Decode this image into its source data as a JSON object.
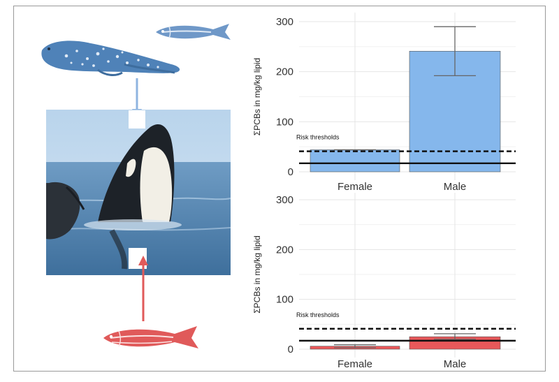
{
  "chart_data": [
    {
      "type": "bar",
      "categories": [
        "Female",
        "Male"
      ],
      "values": [
        44,
        241
      ],
      "error_upper": [
        44,
        290
      ],
      "error_lower": [
        44,
        192
      ],
      "ylim": [
        0,
        300
      ],
      "yticks": [
        0,
        100,
        200,
        300
      ],
      "ylabel": "ΣPCBs in mg/kg lipid",
      "bar_color": "#85b7ec",
      "thresholds": [
        {
          "value": 41,
          "style": "dashed"
        },
        {
          "value": 17,
          "style": "solid"
        }
      ],
      "threshold_label": "Risk thresholds",
      "grid": true
    },
    {
      "type": "bar",
      "categories": [
        "Female",
        "Male"
      ],
      "values": [
        6,
        25
      ],
      "error_upper": [
        9,
        31
      ],
      "error_lower": [
        3,
        20
      ],
      "ylim": [
        0,
        300
      ],
      "yticks": [
        0,
        100,
        200,
        300
      ],
      "ylabel": "ΣPCBs in mg/kg lipid",
      "bar_color": "#e8585a",
      "thresholds": [
        {
          "value": 41,
          "style": "dashed"
        },
        {
          "value": 17,
          "style": "solid"
        }
      ],
      "threshold_label": "Risk thresholds",
      "grid": true
    }
  ],
  "illustration": {
    "top_prey": [
      "seal-icon",
      "herring-icon"
    ],
    "top_arrow_color": "#8fb4e0",
    "predator": "orca-photo",
    "bottom_prey": [
      "herring-icon"
    ],
    "bottom_arrow_color": "#e05a5a",
    "seal_color": "#4f82b8",
    "herring_blue": "#6f98c8",
    "herring_red": "#e05a5a"
  }
}
